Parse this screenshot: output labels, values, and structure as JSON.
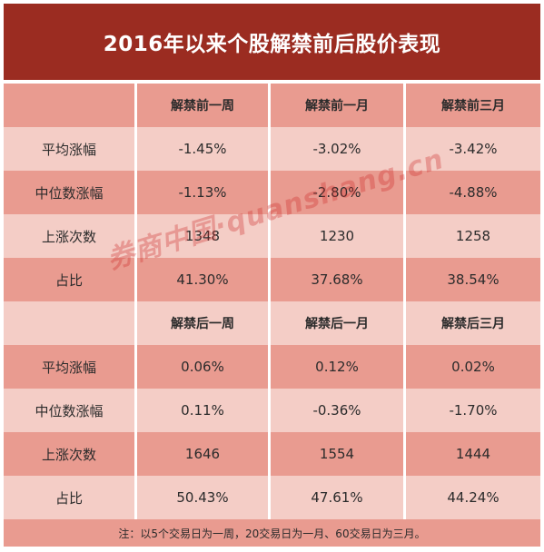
{
  "title": "2016年以来个股解禁前后股价表现",
  "before": {
    "headers": [
      "",
      "解禁前一周",
      "解禁前一月",
      "解禁前三月"
    ],
    "rows": [
      [
        "平均涨幅",
        "-1.45%",
        "-3.02%",
        "-3.42%"
      ],
      [
        "中位数涨幅",
        "-1.13%",
        "-2.80%",
        "-4.88%"
      ],
      [
        "上涨次数",
        "1348",
        "1230",
        "1258"
      ],
      [
        "占比",
        "41.30%",
        "37.68%",
        "38.54%"
      ]
    ]
  },
  "after": {
    "headers": [
      "",
      "解禁后一周",
      "解禁后一月",
      "解禁后三月"
    ],
    "rows": [
      [
        "平均涨幅",
        "0.06%",
        "0.12%",
        "0.02%"
      ],
      [
        "中位数涨幅",
        "0.11%",
        "-0.36%",
        "-1.70%"
      ],
      [
        "上涨次数",
        "1646",
        "1554",
        "1444"
      ],
      [
        "占比",
        "50.43%",
        "47.61%",
        "44.24%"
      ]
    ]
  },
  "note": "注：以5个交易日为一周，20交易日为一月、60交易日为三月。",
  "watermark": "券商中国·quanshang.cn",
  "colors": {
    "title_bg": "#9b2c21",
    "dark_row": "#e99b90",
    "light_row": "#f4cdc6"
  }
}
